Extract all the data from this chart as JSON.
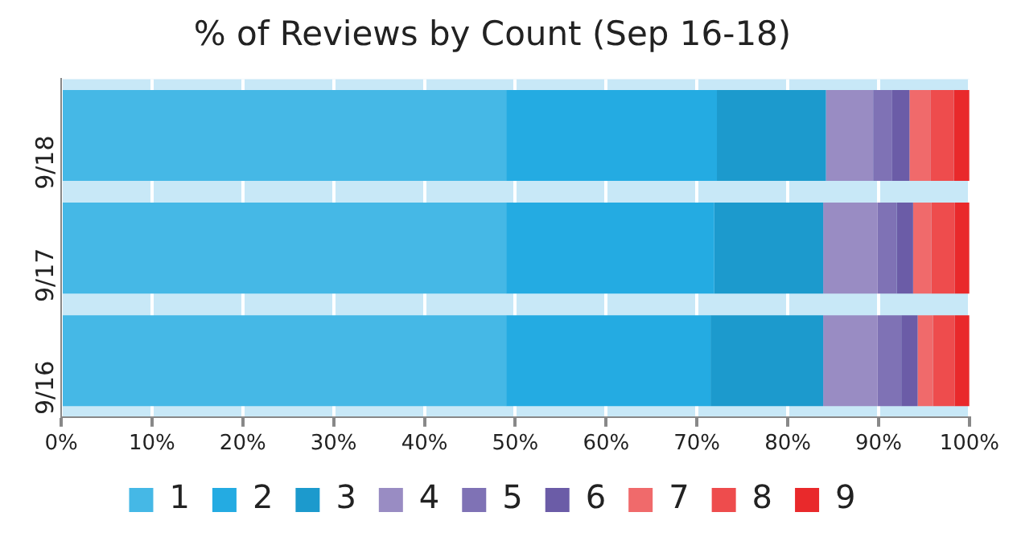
{
  "chart_data": {
    "type": "bar",
    "title": "% of Reviews by Count (Sep 16-18)",
    "orientation": "horizontal",
    "stacked": true,
    "categories": [
      "9/18",
      "9/17",
      "9/16"
    ],
    "series": [
      {
        "name": "1",
        "color": "#45b8e6",
        "values": [
          49,
          49,
          49
        ]
      },
      {
        "name": "2",
        "color": "#24abe2",
        "values": [
          23.2,
          22.9,
          22.5
        ]
      },
      {
        "name": "3",
        "color": "#1c9acd",
        "values": [
          12,
          12,
          12.4
        ]
      },
      {
        "name": "4",
        "color": "#998cc3",
        "values": [
          5.2,
          6,
          6
        ]
      },
      {
        "name": "5",
        "color": "#7f72b5",
        "values": [
          2.1,
          2.1,
          2.6
        ]
      },
      {
        "name": "6",
        "color": "#6b5ca7",
        "values": [
          1.9,
          1.8,
          1.8
        ]
      },
      {
        "name": "7",
        "color": "#f06a6b",
        "values": [
          2.3,
          2.0,
          1.7
        ]
      },
      {
        "name": "8",
        "color": "#ee4c4d",
        "values": [
          2.6,
          2.6,
          2.4
        ]
      },
      {
        "name": "9",
        "color": "#e9292b",
        "values": [
          1.7,
          1.6,
          1.6
        ]
      }
    ],
    "xlim": [
      0,
      100
    ],
    "xticks": [
      {
        "value": 0,
        "label": "0%"
      },
      {
        "value": 10,
        "label": "10%"
      },
      {
        "value": 20,
        "label": "20%"
      },
      {
        "value": 30,
        "label": "30%"
      },
      {
        "value": 40,
        "label": "40%"
      },
      {
        "value": 50,
        "label": "50%"
      },
      {
        "value": 60,
        "label": "60%"
      },
      {
        "value": 70,
        "label": "70%"
      },
      {
        "value": 80,
        "label": "80%"
      },
      {
        "value": 90,
        "label": "90%"
      },
      {
        "value": 100,
        "label": "100%"
      }
    ],
    "bands": [
      {
        "axis": "x",
        "from": 0,
        "to": 100,
        "color": "#c8e8f7"
      }
    ],
    "grid": "x",
    "legend": "bottom"
  }
}
